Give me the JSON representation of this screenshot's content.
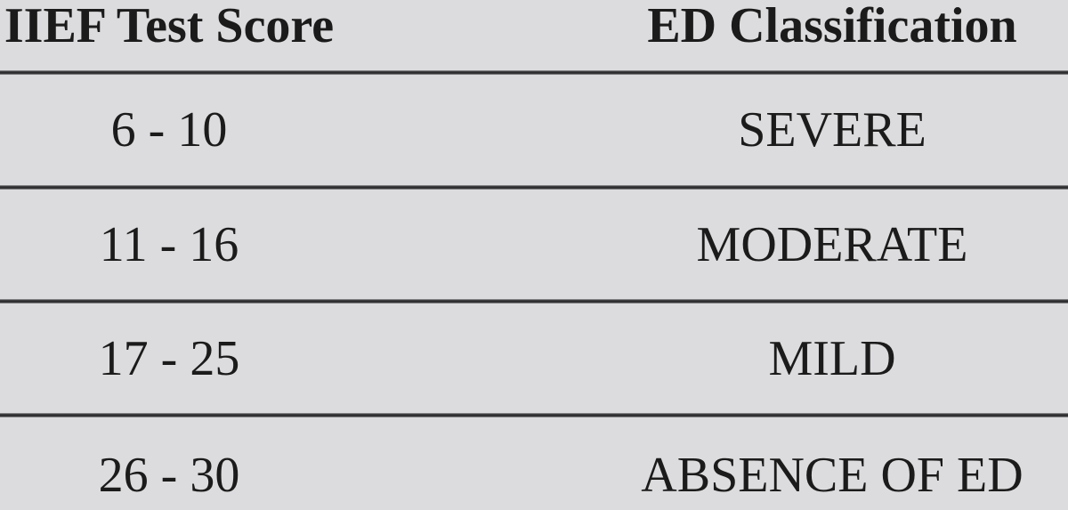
{
  "table": {
    "columns": [
      {
        "label": "IIEF Test Score"
      },
      {
        "label": "ED Classification"
      }
    ],
    "rows": [
      {
        "score": "6 - 10",
        "classification": "SEVERE"
      },
      {
        "score": "11 - 16",
        "classification": "MODERATE"
      },
      {
        "score": "17 - 25",
        "classification": "MILD"
      },
      {
        "score": "26 - 30",
        "classification": "ABSENCE OF ED"
      }
    ],
    "colors": {
      "background": "#dcdcde",
      "text": "#1b1b1b",
      "rule": "#2d2d2f"
    }
  }
}
